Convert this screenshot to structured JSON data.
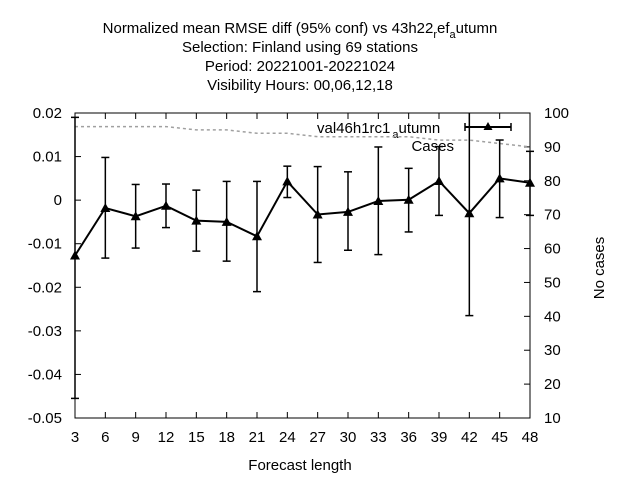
{
  "chart_data": {
    "type": "line",
    "title_lines": [
      "Normalized mean RMSE diff (95% conf) vs 43h22_ref_autumn",
      "Selection: Finland using    69 stations",
      "Period: 20221001-20221024",
      "Visibility   Hours:  00,06,12,18"
    ],
    "xlabel": "Forecast length",
    "ylabel": "",
    "y2label": "No cases",
    "x": [
      3,
      6,
      9,
      12,
      15,
      18,
      21,
      24,
      27,
      30,
      33,
      36,
      39,
      42,
      45,
      48
    ],
    "xlim": [
      3,
      48
    ],
    "ylim": [
      -0.05,
      0.02
    ],
    "y2lim": [
      10,
      100
    ],
    "yticks": [
      "0.02",
      "0.01",
      "0",
      "-0.01",
      "-0.02",
      "-0.03",
      "-0.04",
      "-0.05"
    ],
    "ytick_values": [
      0.02,
      0.01,
      0,
      -0.01,
      -0.02,
      -0.03,
      -0.04,
      -0.05
    ],
    "y2ticks": [
      100,
      90,
      80,
      70,
      60,
      50,
      40,
      30,
      20,
      10
    ],
    "grid": false,
    "legend_position": "top-right",
    "series": [
      {
        "name": "val46h1rc1_autumn",
        "legend_main": "val46h1rc1",
        "legend_sub": "a",
        "legend_tail": "utumn",
        "color": "#000000",
        "marker": "triangle",
        "axis": "left",
        "values": [
          -0.0127,
          -0.0018,
          -0.0037,
          -0.0013,
          -0.0047,
          -0.005,
          -0.0083,
          0.0043,
          -0.0033,
          -0.0027,
          -0.0002,
          0.0001,
          0.0044,
          -0.003,
          0.005,
          0.004
        ],
        "err_low": [
          -0.0455,
          -0.0133,
          -0.011,
          -0.0063,
          -0.0117,
          -0.014,
          -0.021,
          0.0006,
          -0.0143,
          -0.0115,
          -0.0125,
          -0.0073,
          -0.0035,
          -0.0265,
          -0.004,
          -0.0035
        ],
        "err_high": [
          0.019,
          0.0098,
          0.0036,
          0.0037,
          0.0023,
          0.0043,
          0.0043,
          0.0078,
          0.0077,
          0.0065,
          0.0122,
          0.0073,
          0.0123,
          0.02,
          0.0138,
          0.0112
        ]
      },
      {
        "name": "Cases",
        "color": "#a0a0a0",
        "style": "dashed",
        "axis": "right",
        "values": [
          96,
          96,
          96,
          96,
          95,
          95,
          94,
          94,
          93,
          93,
          93,
          93,
          92,
          92,
          91,
          90
        ]
      }
    ]
  }
}
